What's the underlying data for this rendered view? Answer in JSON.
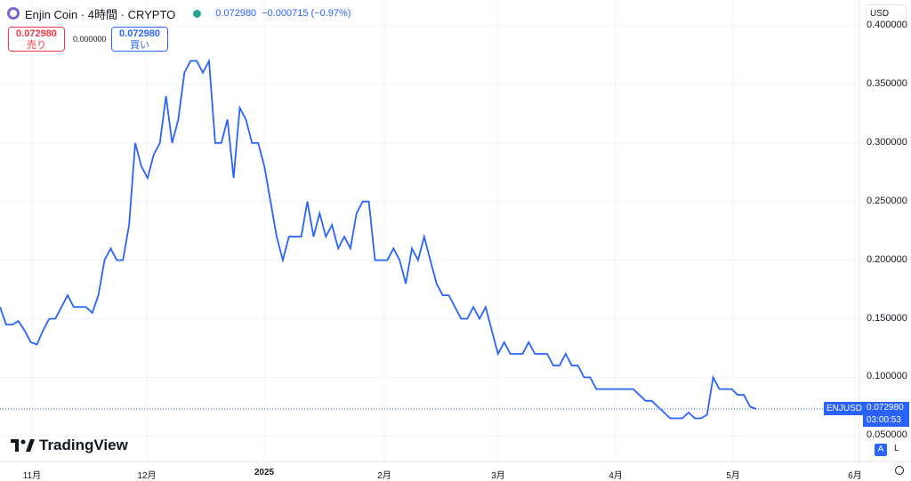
{
  "header": {
    "title": "Enjin Coin · 4時間 · CRYPTO",
    "price": "0.072980",
    "change": "−0.000715 (−0.97%)",
    "currency": "USD"
  },
  "trade": {
    "sell_price": "0.072980",
    "sell_label": "売り",
    "spread": "0.000000",
    "buy_price": "0.072980",
    "buy_label": "買い"
  },
  "price_tag": {
    "symbol": "ENJUSD",
    "price": "0.072980",
    "countdown": "03:00:53"
  },
  "logo": "TradingView",
  "scale_buttons": {
    "auto": "A",
    "log": "L"
  },
  "colors": {
    "line": "#2962ff",
    "grid": "#f0f3fa",
    "sell": "#f23645",
    "buy": "#2962ff"
  },
  "chart_data": {
    "type": "line",
    "title": "",
    "xlabel": "",
    "ylabel": "",
    "x_tick_labels": [
      "11月",
      "12月",
      "2025",
      "2月",
      "3月",
      "4月",
      "5月",
      "6月"
    ],
    "y_tick_labels": [
      "0.400000",
      "0.350000",
      "0.300000",
      "0.250000",
      "0.200000",
      "0.150000",
      "0.100000",
      "0.050000"
    ],
    "y_ticks": [
      0.4,
      0.35,
      0.3,
      0.25,
      0.2,
      0.15,
      0.1,
      0.05
    ],
    "ylim": [
      0.03,
      0.42
    ],
    "grid": true,
    "series": [
      {
        "values": [
          0.16,
          0.145,
          0.145,
          0.148,
          0.14,
          0.13,
          0.128,
          0.14,
          0.15,
          0.15,
          0.16,
          0.17,
          0.16,
          0.16,
          0.16,
          0.155,
          0.17,
          0.2,
          0.21,
          0.2,
          0.2,
          0.23,
          0.3,
          0.28,
          0.27,
          0.29,
          0.3,
          0.34,
          0.3,
          0.32,
          0.36,
          0.37,
          0.37,
          0.36,
          0.37,
          0.3,
          0.3,
          0.32,
          0.27,
          0.33,
          0.32,
          0.3,
          0.3,
          0.28,
          0.25,
          0.22,
          0.2,
          0.22,
          0.22,
          0.22,
          0.25,
          0.22,
          0.24,
          0.22,
          0.23,
          0.21,
          0.22,
          0.21,
          0.24,
          0.25,
          0.25,
          0.2,
          0.2,
          0.2,
          0.21,
          0.2,
          0.18,
          0.21,
          0.2,
          0.22,
          0.2,
          0.18,
          0.17,
          0.17,
          0.16,
          0.15,
          0.15,
          0.16,
          0.15,
          0.16,
          0.14,
          0.12,
          0.13,
          0.12,
          0.12,
          0.12,
          0.13,
          0.12,
          0.12,
          0.12,
          0.11,
          0.11,
          0.12,
          0.11,
          0.11,
          0.1,
          0.1,
          0.09,
          0.09,
          0.09,
          0.09,
          0.09,
          0.09,
          0.09,
          0.085,
          0.08,
          0.08,
          0.075,
          0.07,
          0.065,
          0.065,
          0.065,
          0.07,
          0.065,
          0.065,
          0.068,
          0.1,
          0.09,
          0.09,
          0.09,
          0.085,
          0.085,
          0.075,
          0.073
        ]
      }
    ]
  }
}
